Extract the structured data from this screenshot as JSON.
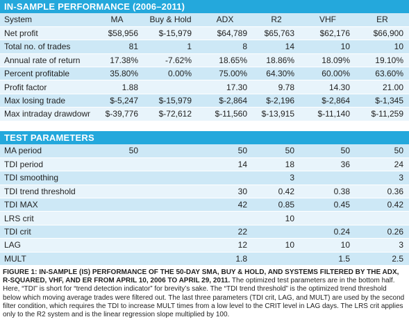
{
  "section1_title": "IN-SAMPLE PERFORMANCE (2006–2011)",
  "header": [
    "System",
    "MA",
    "Buy & Hold",
    "ADX",
    "R2",
    "VHF",
    "ER"
  ],
  "performance_rows": [
    [
      "Net profit",
      "$58,956",
      "$-15,979",
      "$64,789",
      "$65,763",
      "$62,176",
      "$66,900"
    ],
    [
      "Total no. of trades",
      "81",
      "1",
      "8",
      "14",
      "10",
      "10"
    ],
    [
      "Annual rate of return",
      "17.38%",
      "-7.62%",
      "18.65%",
      "18.86%",
      "18.09%",
      "19.10%"
    ],
    [
      "Percent profitable",
      "35.80%",
      "0.00%",
      "75.00%",
      "64.30%",
      "60.00%",
      "63.60%"
    ],
    [
      "Profit factor",
      "1.88",
      "",
      "17.30",
      "9.78",
      "14.30",
      "21.00"
    ],
    [
      "Max losing trade",
      "$-5,247",
      "$-15,979",
      "$-2,864",
      "$-2,196",
      "$-2,864",
      "$-1,345"
    ],
    [
      "Max intraday drawdown",
      "$-39,776",
      "$-72,612",
      "$-11,560",
      "$-13,915",
      "$-11,140",
      "$-11,259"
    ]
  ],
  "section2_title": "TEST PARAMETERS",
  "parameter_rows": [
    [
      "MA period",
      "50",
      "",
      "50",
      "50",
      "50",
      "50"
    ],
    [
      "TDI period",
      "",
      "",
      "14",
      "18",
      "36",
      "24"
    ],
    [
      "TDI smoothing",
      "",
      "",
      "",
      "3",
      "",
      "3"
    ],
    [
      "TDI trend threshold",
      "",
      "",
      "30",
      "0.42",
      "0.38",
      "0.36"
    ],
    [
      "TDI MAX",
      "",
      "",
      "42",
      "0.85",
      "0.45",
      "0.42"
    ],
    [
      "LRS crit",
      "",
      "",
      "",
      "10",
      "",
      ""
    ],
    [
      "TDI  crit",
      "",
      "",
      "22",
      "",
      "0.24",
      "0.26"
    ],
    [
      "LAG",
      "",
      "",
      "12",
      "10",
      "10",
      "3"
    ],
    [
      "MULT",
      "",
      "",
      "1.8",
      "",
      "1.5",
      "2.5"
    ]
  ],
  "caption": {
    "lead": "FIGURE 1: IN-SAMPLE (IS) PERFORMANCE OF THE 50-DAY SMA, BUY & HOLD, AND SYSTEMS FILTERED BY THE ADX, R-SQUARED, VHF, AND ER FROM APRIL 10, 2006 TO APRIL 29, 2011.",
    "body": " The optimized test parameters are in the bottom half. Here, “TDI” is short for “trend detection indicator” for brevity’s sake. The “TDI trend threshold” is the optimized trend threshold below which moving average trades were filtered out. The last three parameters (TDI crit, LAG, and MULT) are used by the second filter condition, which requires the TDI to increase MULT times from a low level to the CRIT level in LAG days. The LRS crit applies only to the R2 system and is the linear regression slope multiplied by 100."
  }
}
